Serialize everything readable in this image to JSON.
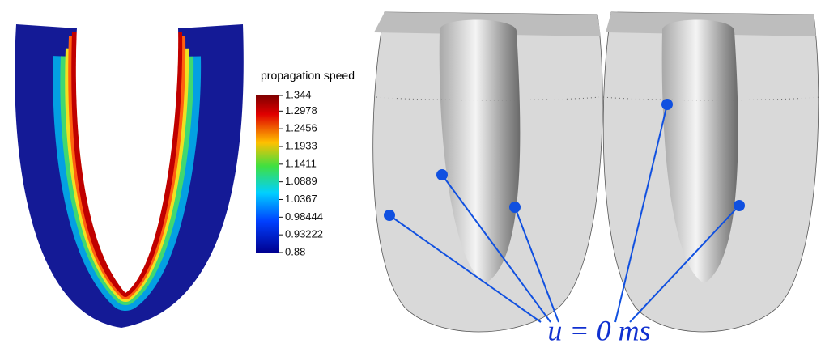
{
  "colorbar": {
    "title": "propagation speed",
    "range": [
      0.88,
      1.344
    ],
    "ticks": [
      1.344,
      1.2978,
      1.2456,
      1.1933,
      1.1411,
      1.0889,
      1.0367,
      0.98444,
      0.93222,
      0.88
    ]
  },
  "annotation": "u = 0 ms"
}
